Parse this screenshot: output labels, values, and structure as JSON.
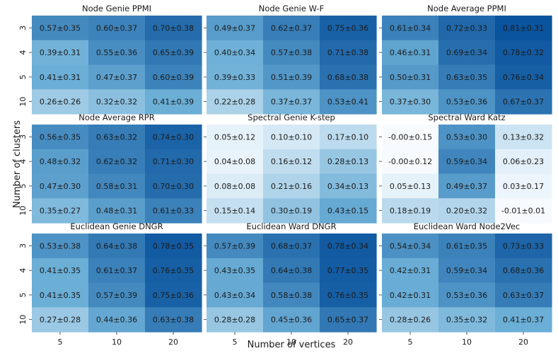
{
  "figure": {
    "xlabel": "Number of vertices",
    "ylabel": "Number of clusters"
  },
  "colormap": {
    "low": "#f7fbff",
    "mid": "#6baed6",
    "high": "#08519c"
  },
  "chart_data": [
    {
      "type": "heatmap",
      "title": "Node Genie PPMI",
      "x": [
        "5",
        "10",
        "20"
      ],
      "y": [
        "3",
        "4",
        "5",
        "10"
      ],
      "values": [
        [
          0.57,
          0.6,
          0.7
        ],
        [
          0.39,
          0.55,
          0.65
        ],
        [
          0.41,
          0.47,
          0.6
        ],
        [
          0.26,
          0.32,
          0.41
        ]
      ],
      "labels": [
        [
          "0.57±0.35",
          "0.60±0.37",
          "0.70±0.38"
        ],
        [
          "0.39±0.31",
          "0.55±0.36",
          "0.65±0.39"
        ],
        [
          "0.41±0.31",
          "0.47±0.37",
          "0.60±0.39"
        ],
        [
          "0.26±0.26",
          "0.32±0.32",
          "0.41±0.39"
        ]
      ]
    },
    {
      "type": "heatmap",
      "title": "Node Genie W-F",
      "x": [
        "5",
        "10",
        "20"
      ],
      "y": [
        "3",
        "4",
        "5",
        "10"
      ],
      "values": [
        [
          0.49,
          0.62,
          0.75
        ],
        [
          0.4,
          0.57,
          0.71
        ],
        [
          0.39,
          0.51,
          0.68
        ],
        [
          0.22,
          0.37,
          0.53
        ]
      ],
      "labels": [
        [
          "0.49±0.37",
          "0.62±0.37",
          "0.75±0.36"
        ],
        [
          "0.40±0.34",
          "0.57±0.38",
          "0.71±0.38"
        ],
        [
          "0.39±0.33",
          "0.51±0.39",
          "0.68±0.38"
        ],
        [
          "0.22±0.28",
          "0.37±0.37",
          "0.53±0.41"
        ]
      ]
    },
    {
      "type": "heatmap",
      "title": "Node Average PPMI",
      "x": [
        "5",
        "10",
        "20"
      ],
      "y": [
        "3",
        "4",
        "5",
        "10"
      ],
      "values": [
        [
          0.61,
          0.72,
          0.81
        ],
        [
          0.46,
          0.69,
          0.78
        ],
        [
          0.5,
          0.63,
          0.76
        ],
        [
          0.37,
          0.53,
          0.67
        ]
      ],
      "labels": [
        [
          "0.61±0.34",
          "0.72±0.33",
          "0.81±0.31"
        ],
        [
          "0.46±0.31",
          "0.69±0.34",
          "0.78±0.32"
        ],
        [
          "0.50±0.31",
          "0.63±0.35",
          "0.76±0.34"
        ],
        [
          "0.37±0.30",
          "0.53±0.36",
          "0.67±0.37"
        ]
      ]
    },
    {
      "type": "heatmap",
      "title": "Node Average RPR",
      "x": [
        "5",
        "10",
        "20"
      ],
      "y": [
        "3",
        "4",
        "5",
        "10"
      ],
      "values": [
        [
          0.56,
          0.63,
          0.74
        ],
        [
          0.48,
          0.62,
          0.71
        ],
        [
          0.47,
          0.58,
          0.7
        ],
        [
          0.35,
          0.48,
          0.61
        ]
      ],
      "labels": [
        [
          "0.56±0.35",
          "0.63±0.32",
          "0.74±0.30"
        ],
        [
          "0.48±0.32",
          "0.62±0.32",
          "0.71±0.30"
        ],
        [
          "0.47±0.30",
          "0.58±0.31",
          "0.70±0.30"
        ],
        [
          "0.35±0.27",
          "0.48±0.31",
          "0.61±0.33"
        ]
      ]
    },
    {
      "type": "heatmap",
      "title": "Spectral Genie K-step",
      "x": [
        "5",
        "10",
        "20"
      ],
      "y": [
        "3",
        "4",
        "5",
        "10"
      ],
      "values": [
        [
          0.05,
          0.1,
          0.17
        ],
        [
          0.04,
          0.16,
          0.28
        ],
        [
          0.08,
          0.21,
          0.34
        ],
        [
          0.15,
          0.3,
          0.43
        ]
      ],
      "labels": [
        [
          "0.05±0.12",
          "0.10±0.10",
          "0.17±0.10"
        ],
        [
          "0.04±0.08",
          "0.16±0.12",
          "0.28±0.13"
        ],
        [
          "0.08±0.08",
          "0.21±0.16",
          "0.34±0.13"
        ],
        [
          "0.15±0.14",
          "0.30±0.19",
          "0.43±0.15"
        ]
      ]
    },
    {
      "type": "heatmap",
      "title": "Spectral Ward Katz",
      "x": [
        "5",
        "10",
        "20"
      ],
      "y": [
        "3",
        "4",
        "5",
        "10"
      ],
      "values": [
        [
          -0.0,
          0.53,
          0.13
        ],
        [
          -0.0,
          0.59,
          0.06
        ],
        [
          0.05,
          0.49,
          0.03
        ],
        [
          0.18,
          0.2,
          -0.01
        ]
      ],
      "labels": [
        [
          "-0.00±0.15",
          "0.53±0.30",
          "0.13±0.32"
        ],
        [
          "-0.00±0.12",
          "0.59±0.34",
          "0.06±0.23"
        ],
        [
          "0.05±0.13",
          "0.49±0.37",
          "0.03±0.17"
        ],
        [
          "0.18±0.19",
          "0.20±0.32",
          "-0.01±0.01"
        ]
      ]
    },
    {
      "type": "heatmap",
      "title": "Euclidean Genie DNGR",
      "x": [
        "5",
        "10",
        "20"
      ],
      "y": [
        "3",
        "4",
        "5",
        "10"
      ],
      "values": [
        [
          0.53,
          0.64,
          0.78
        ],
        [
          0.41,
          0.61,
          0.76
        ],
        [
          0.41,
          0.57,
          0.75
        ],
        [
          0.27,
          0.44,
          0.63
        ]
      ],
      "labels": [
        [
          "0.53±0.38",
          "0.64±0.38",
          "0.78±0.35"
        ],
        [
          "0.41±0.35",
          "0.61±0.37",
          "0.76±0.35"
        ],
        [
          "0.41±0.35",
          "0.57±0.39",
          "0.75±0.36"
        ],
        [
          "0.27±0.28",
          "0.44±0.36",
          "0.63±0.38"
        ]
      ]
    },
    {
      "type": "heatmap",
      "title": "Euclidean Ward DNGR",
      "x": [
        "5",
        "10",
        "20"
      ],
      "y": [
        "3",
        "4",
        "5",
        "10"
      ],
      "values": [
        [
          0.57,
          0.68,
          0.78
        ],
        [
          0.43,
          0.64,
          0.77
        ],
        [
          0.43,
          0.58,
          0.76
        ],
        [
          0.28,
          0.45,
          0.65
        ]
      ],
      "labels": [
        [
          "0.57±0.39",
          "0.68±0.37",
          "0.78±0.34"
        ],
        [
          "0.43±0.35",
          "0.64±0.38",
          "0.77±0.35"
        ],
        [
          "0.43±0.34",
          "0.58±0.38",
          "0.76±0.35"
        ],
        [
          "0.28±0.28",
          "0.45±0.36",
          "0.65±0.37"
        ]
      ]
    },
    {
      "type": "heatmap",
      "title": "Euclidean Ward Node2Vec",
      "x": [
        "5",
        "10",
        "20"
      ],
      "y": [
        "3",
        "4",
        "5",
        "10"
      ],
      "values": [
        [
          0.54,
          0.61,
          0.73
        ],
        [
          0.42,
          0.59,
          0.68
        ],
        [
          0.42,
          0.53,
          0.63
        ],
        [
          0.28,
          0.35,
          0.41
        ]
      ],
      "labels": [
        [
          "0.54±0.34",
          "0.61±0.35",
          "0.73±0.33"
        ],
        [
          "0.42±0.31",
          "0.59±0.34",
          "0.68±0.36"
        ],
        [
          "0.42±0.31",
          "0.53±0.36",
          "0.63±0.37"
        ],
        [
          "0.28±0.26",
          "0.35±0.32",
          "0.41±0.37"
        ]
      ]
    }
  ]
}
